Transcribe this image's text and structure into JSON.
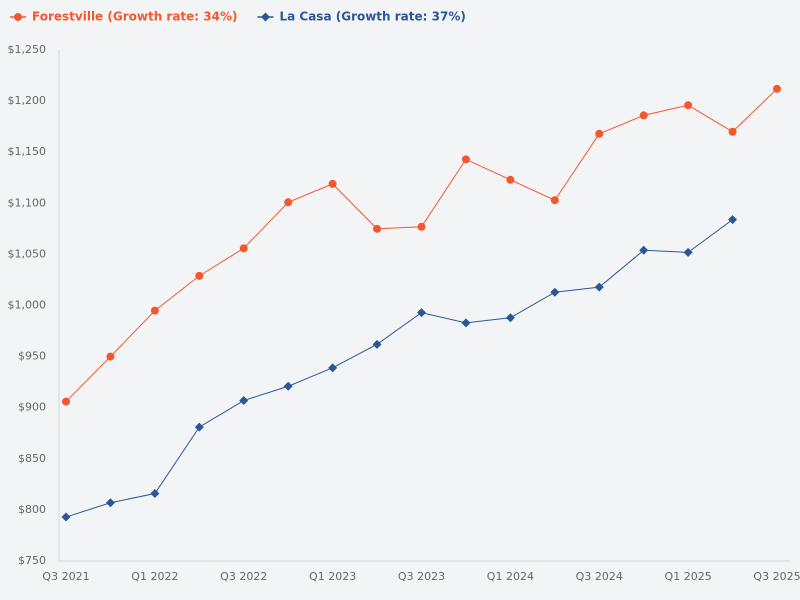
{
  "chart_data": {
    "type": "line",
    "categories": [
      "Q3 2021",
      null,
      "Q1 2022",
      null,
      "Q3 2022",
      null,
      "Q1 2023",
      null,
      "Q3 2023",
      null,
      "Q1 2024",
      null,
      "Q3 2024",
      null,
      "Q1 2025",
      null,
      "Q3 2025"
    ],
    "series": [
      {
        "name": "Forestville (Growth rate: 34%)",
        "color": "#f4572e",
        "marker": "circle",
        "values": [
          906,
          950,
          995,
          1029,
          1056,
          1101,
          1119,
          1075,
          1077,
          1143,
          1123,
          1103,
          1168,
          1186,
          1196,
          1170,
          1212
        ]
      },
      {
        "name": "La Casa (Growth rate: 37%)",
        "color": "#2b5797",
        "marker": "diamond",
        "values": [
          793,
          807,
          816,
          881,
          907,
          921,
          939,
          962,
          993,
          983,
          988,
          1013,
          1018,
          1054,
          1052,
          1084,
          null
        ]
      }
    ],
    "ylim": [
      750,
      1250
    ],
    "yticks": [
      {
        "value": 750,
        "label": "$750"
      },
      {
        "value": 800,
        "label": "$800"
      },
      {
        "value": 850,
        "label": "$850"
      },
      {
        "value": 900,
        "label": "$900"
      },
      {
        "value": 950,
        "label": "$950"
      },
      {
        "value": 1000,
        "label": "$1,000"
      },
      {
        "value": 1050,
        "label": "$1,050"
      },
      {
        "value": 1100,
        "label": "$1,100"
      },
      {
        "value": 1150,
        "label": "$1,150"
      },
      {
        "value": 1200,
        "label": "$1,200"
      },
      {
        "value": 1250,
        "label": "$1,250"
      }
    ],
    "grid": false,
    "legend": "top-left"
  }
}
